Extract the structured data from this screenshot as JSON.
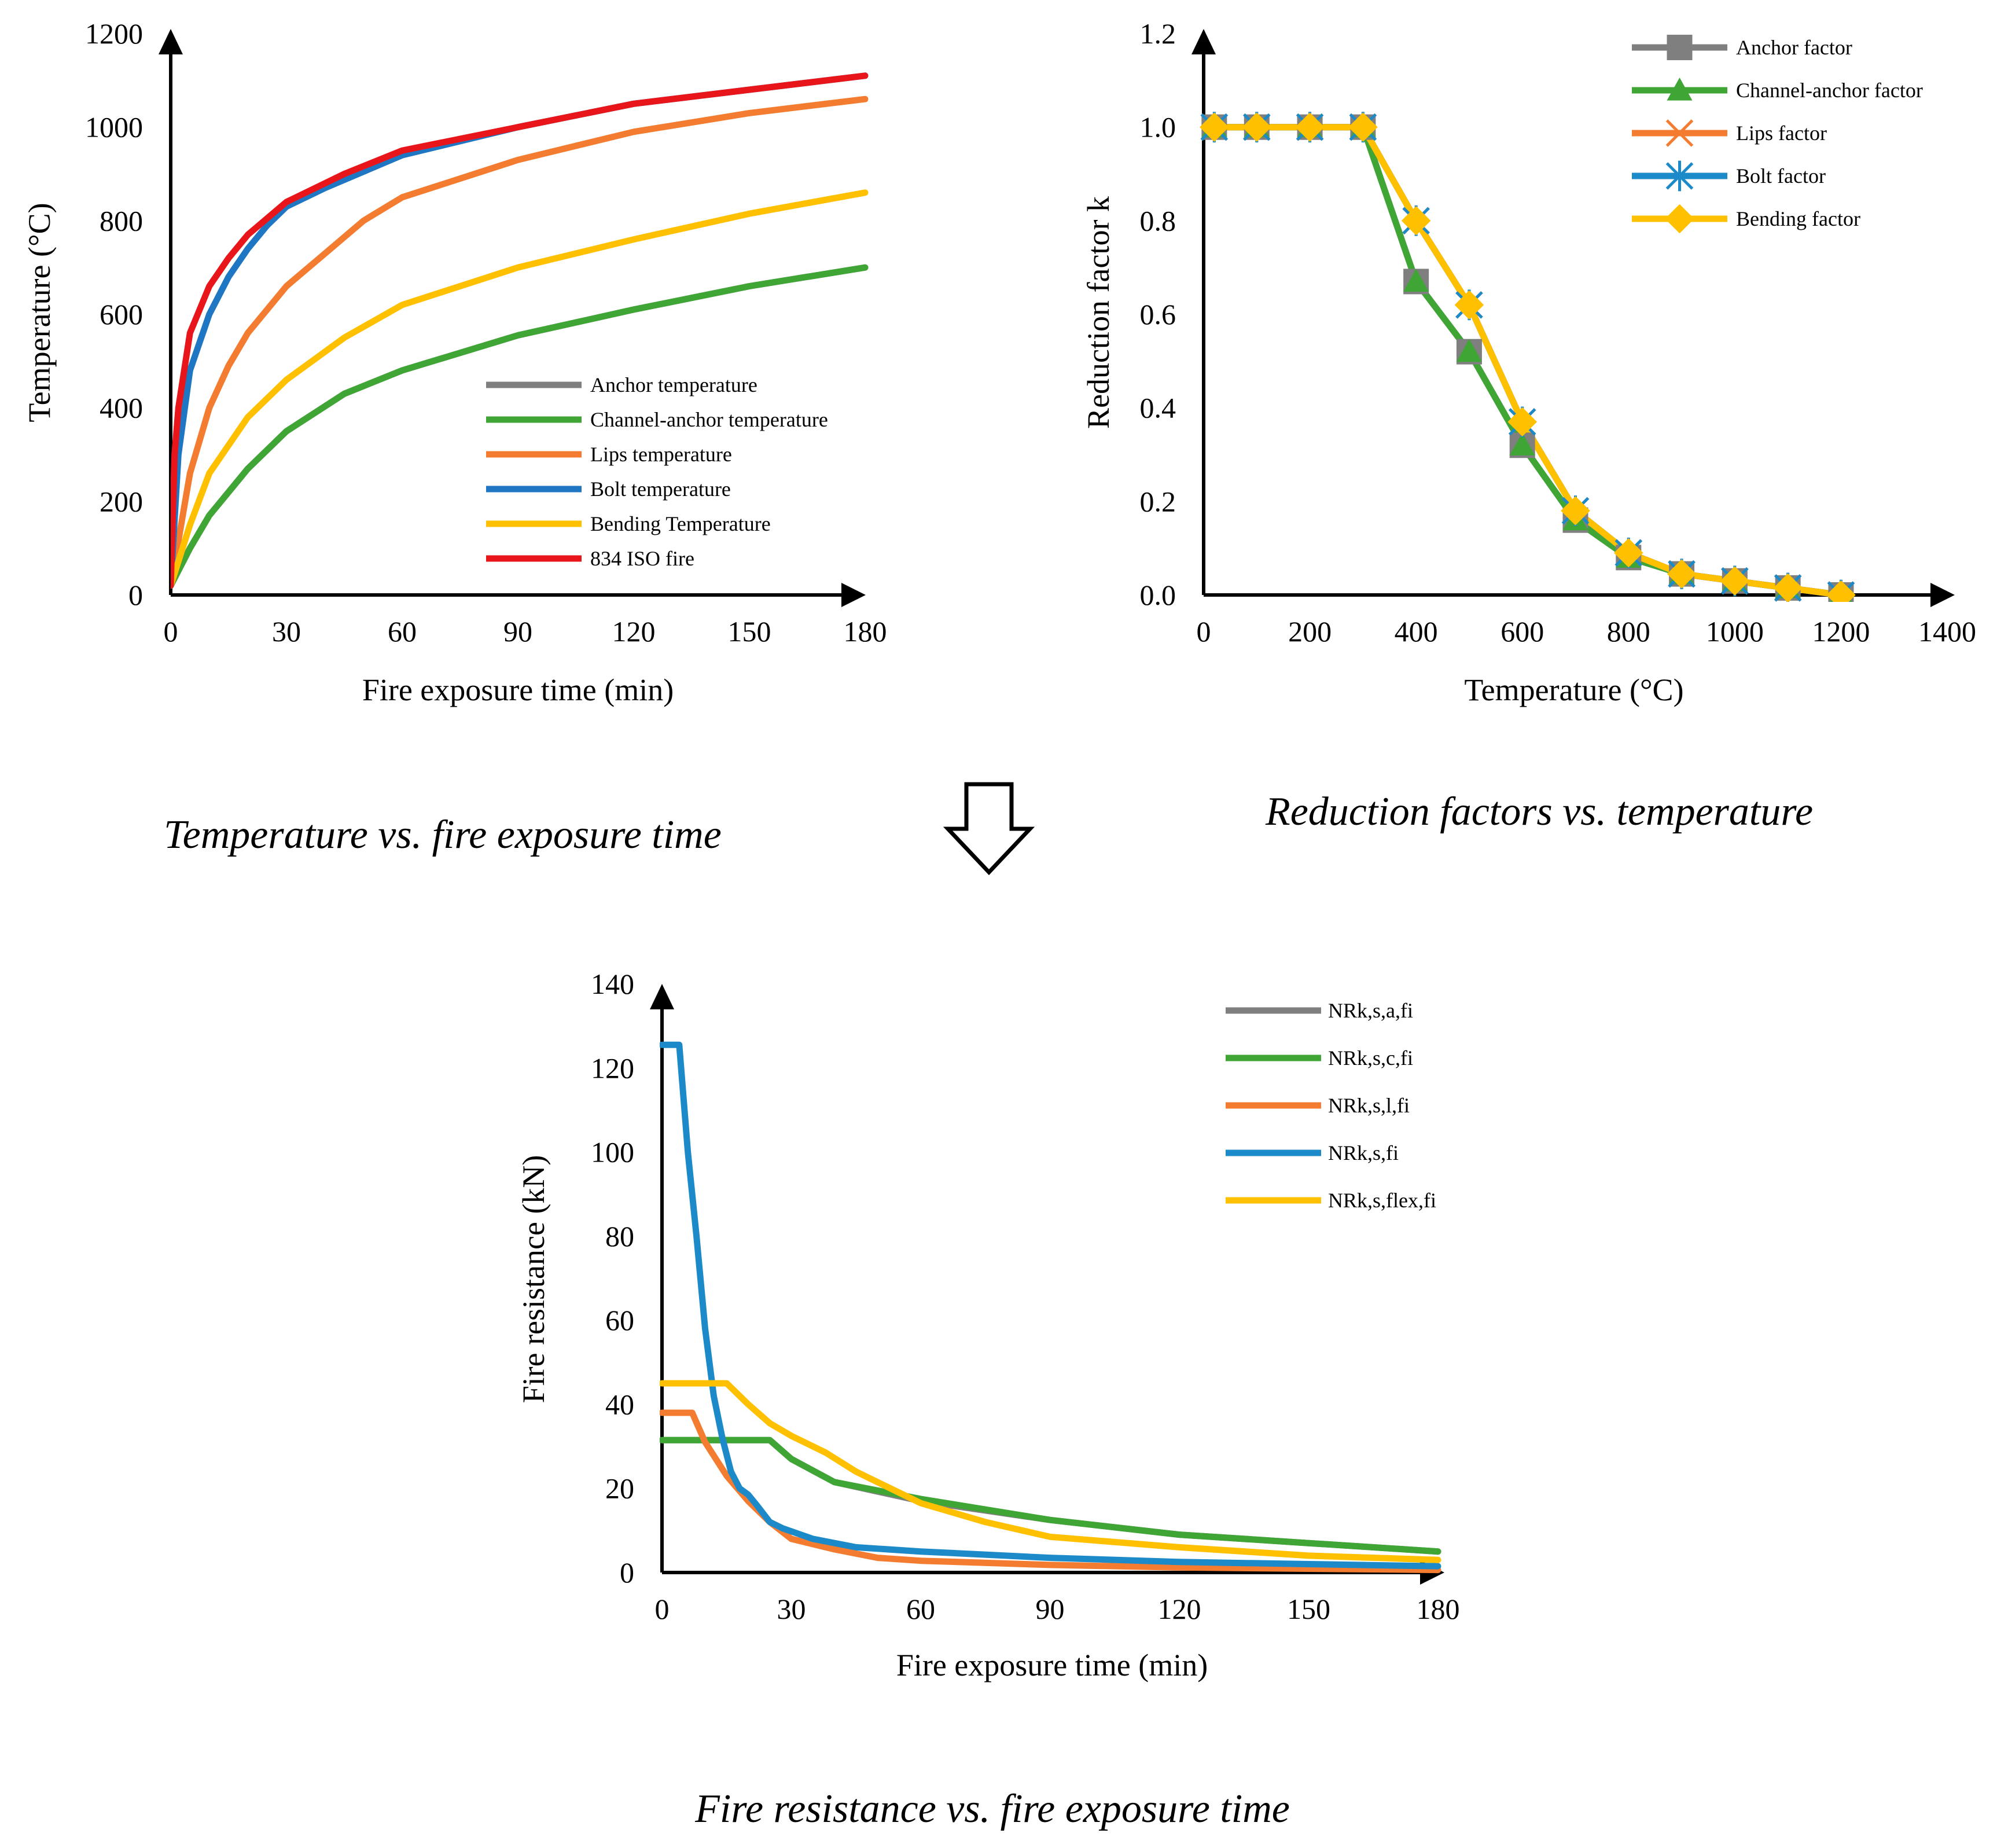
{
  "colors": {
    "gray": "#7f7f7f",
    "green": "#3fa535",
    "orange": "#f47c30",
    "blue": "#1f77c4",
    "lightblue": "#1c8ac8",
    "yellow": "#ffc000",
    "red": "#e8161a"
  },
  "chart_data": [
    {
      "type": "line",
      "caption": "Temperature vs. fire exposure time",
      "xlabel": "Fire exposure time (min)",
      "ylabel": "Temperature (°C)",
      "xlim": [
        0,
        180
      ],
      "ylim": [
        0,
        1200
      ],
      "xticks": [
        "0",
        "30",
        "60",
        "90",
        "120",
        "150",
        "180"
      ],
      "yticks": [
        "0",
        "200",
        "400",
        "600",
        "800",
        "1000",
        "1200"
      ],
      "legend_position": "bottom-right",
      "series": [
        {
          "name": "Anchor temperature",
          "color": "#7f7f7f",
          "x": [
            0,
            5,
            10,
            20,
            30,
            45,
            60,
            90,
            120,
            150,
            180
          ],
          "y": [
            20,
            100,
            170,
            270,
            350,
            430,
            480,
            555,
            610,
            660,
            700
          ]
        },
        {
          "name": "Channel-anchor temperature",
          "color": "#3fa535",
          "x": [
            0,
            5,
            10,
            20,
            30,
            45,
            60,
            90,
            120,
            150,
            180
          ],
          "y": [
            20,
            100,
            170,
            270,
            350,
            430,
            480,
            555,
            610,
            660,
            700
          ]
        },
        {
          "name": "Lips temperature",
          "color": "#f47c30",
          "x": [
            0,
            5,
            10,
            15,
            20,
            30,
            40,
            50,
            60,
            90,
            120,
            150,
            180
          ],
          "y": [
            20,
            260,
            400,
            490,
            560,
            660,
            730,
            800,
            850,
            930,
            990,
            1030,
            1060
          ]
        },
        {
          "name": "Bolt temperature",
          "color": "#1f77c4",
          "x": [
            0,
            2,
            5,
            10,
            15,
            20,
            25,
            30,
            40,
            60,
            90,
            120,
            150,
            180
          ],
          "y": [
            20,
            300,
            480,
            600,
            680,
            740,
            790,
            830,
            870,
            940,
            1000,
            1050,
            1080,
            1110
          ]
        },
        {
          "name": "Bending Temperature",
          "color": "#ffc000",
          "x": [
            0,
            5,
            10,
            20,
            30,
            45,
            60,
            90,
            120,
            150,
            180
          ],
          "y": [
            20,
            150,
            260,
            380,
            460,
            550,
            620,
            700,
            760,
            815,
            860
          ]
        },
        {
          "name": "834 ISO fire",
          "color": "#e8161a",
          "x": [
            0,
            1,
            2,
            5,
            10,
            15,
            20,
            30,
            45,
            60,
            90,
            120,
            150,
            180
          ],
          "y": [
            20,
            300,
            400,
            560,
            660,
            720,
            770,
            840,
            900,
            950,
            1000,
            1050,
            1080,
            1110
          ]
        }
      ]
    },
    {
      "type": "line",
      "caption": "Reduction factors vs. temperature",
      "xlabel": "Temperature (°C)",
      "ylabel": "Reduction factor k",
      "xlim": [
        0,
        1400
      ],
      "ylim": [
        0,
        1.2
      ],
      "xticks": [
        "0",
        "200",
        "400",
        "600",
        "800",
        "1000",
        "1200",
        "1400"
      ],
      "yticks": [
        "0.0",
        "0.2",
        "0.4",
        "0.6",
        "0.8",
        "1.0",
        "1.2"
      ],
      "legend_position": "top-right",
      "series": [
        {
          "name": "Anchor factor",
          "color": "#7f7f7f",
          "marker": "square",
          "x": [
            20,
            100,
            200,
            300,
            400,
            500,
            600,
            700,
            800,
            900,
            1000,
            1100,
            1200
          ],
          "y": [
            1.0,
            1.0,
            1.0,
            1.0,
            0.67,
            0.52,
            0.32,
            0.16,
            0.08,
            0.045,
            0.03,
            0.015,
            0.0
          ]
        },
        {
          "name": "Channel-anchor factor",
          "color": "#3fa535",
          "marker": "triangle",
          "x": [
            20,
            100,
            200,
            300,
            400,
            500,
            600,
            700,
            800,
            900,
            1000,
            1100,
            1200
          ],
          "y": [
            1.0,
            1.0,
            1.0,
            1.0,
            0.67,
            0.52,
            0.32,
            0.16,
            0.08,
            0.045,
            0.03,
            0.015,
            0.0
          ]
        },
        {
          "name": "Lips factor",
          "color": "#f47c30",
          "marker": "x",
          "x": [
            20,
            100,
            200,
            300,
            400,
            500,
            600,
            700,
            800,
            900,
            1000,
            1100,
            1200
          ],
          "y": [
            1.0,
            1.0,
            1.0,
            1.0,
            0.8,
            0.62,
            0.37,
            0.18,
            0.09,
            0.045,
            0.03,
            0.015,
            0.0
          ]
        },
        {
          "name": "Bolt factor",
          "color": "#1c8ac8",
          "marker": "star",
          "x": [
            20,
            100,
            200,
            300,
            400,
            500,
            600,
            700,
            800,
            900,
            1000,
            1100,
            1200
          ],
          "y": [
            1.0,
            1.0,
            1.0,
            1.0,
            0.8,
            0.62,
            0.37,
            0.18,
            0.09,
            0.045,
            0.03,
            0.015,
            0.0
          ]
        },
        {
          "name": "Bending factor",
          "color": "#ffc000",
          "marker": "diamond",
          "x": [
            20,
            100,
            200,
            300,
            400,
            500,
            600,
            700,
            800,
            900,
            1000,
            1100,
            1200
          ],
          "y": [
            1.0,
            1.0,
            1.0,
            1.0,
            0.8,
            0.62,
            0.37,
            0.18,
            0.09,
            0.045,
            0.03,
            0.015,
            0.0
          ]
        }
      ]
    },
    {
      "type": "line",
      "caption": "Fire resistance vs. fire exposure time",
      "xlabel": "Fire exposure time (min)",
      "ylabel": "Fire resistance (kN)",
      "xlim": [
        0,
        180
      ],
      "ylim": [
        0,
        140
      ],
      "xticks": [
        "0",
        "30",
        "60",
        "90",
        "120",
        "150",
        "180"
      ],
      "yticks": [
        "0",
        "20",
        "40",
        "60",
        "80",
        "100",
        "120",
        "140"
      ],
      "legend_position": "top-right",
      "series": [
        {
          "name": "NRk,s,a,fi",
          "color": "#7f7f7f",
          "x": [
            0,
            25,
            30,
            40,
            60,
            90,
            120,
            150,
            180
          ],
          "y": [
            31.5,
            31.5,
            27,
            21.5,
            17,
            12.5,
            9,
            7,
            5
          ]
        },
        {
          "name": "NRk,s,c,fi",
          "color": "#3fa535",
          "x": [
            0,
            25,
            30,
            40,
            60,
            90,
            120,
            150,
            180
          ],
          "y": [
            31.5,
            31.5,
            27,
            21.5,
            17.5,
            12.5,
            9,
            7,
            5
          ]
        },
        {
          "name": "NRk,s,l,fi",
          "color": "#f47c30",
          "x": [
            0,
            7,
            10,
            15,
            20,
            25,
            30,
            40,
            50,
            60,
            90,
            120,
            150,
            180
          ],
          "y": [
            38,
            38,
            31,
            23,
            17,
            12,
            8,
            5.5,
            3.5,
            2.8,
            1.8,
            1.2,
            0.9,
            0.6
          ]
        },
        {
          "name": "NRk,s,fi",
          "color": "#1c8ac8",
          "x": [
            0,
            4,
            6,
            8,
            10,
            12,
            14,
            16,
            18,
            20,
            22,
            25,
            28,
            35,
            45,
            60,
            90,
            120,
            150,
            180
          ],
          "y": [
            125.5,
            125.5,
            100,
            80,
            58,
            42,
            32,
            24,
            20,
            18.5,
            16,
            12,
            10.5,
            8,
            6,
            5,
            3.5,
            2.5,
            2,
            1.5
          ]
        },
        {
          "name": "NRk,s,flex,fi",
          "color": "#ffc000",
          "x": [
            0,
            15,
            20,
            25,
            30,
            38,
            45,
            55,
            60,
            75,
            90,
            120,
            150,
            180
          ],
          "y": [
            45,
            45,
            40,
            35.5,
            32.5,
            28.5,
            24,
            19,
            16.5,
            12,
            8.5,
            6,
            4,
            3
          ]
        }
      ]
    }
  ]
}
